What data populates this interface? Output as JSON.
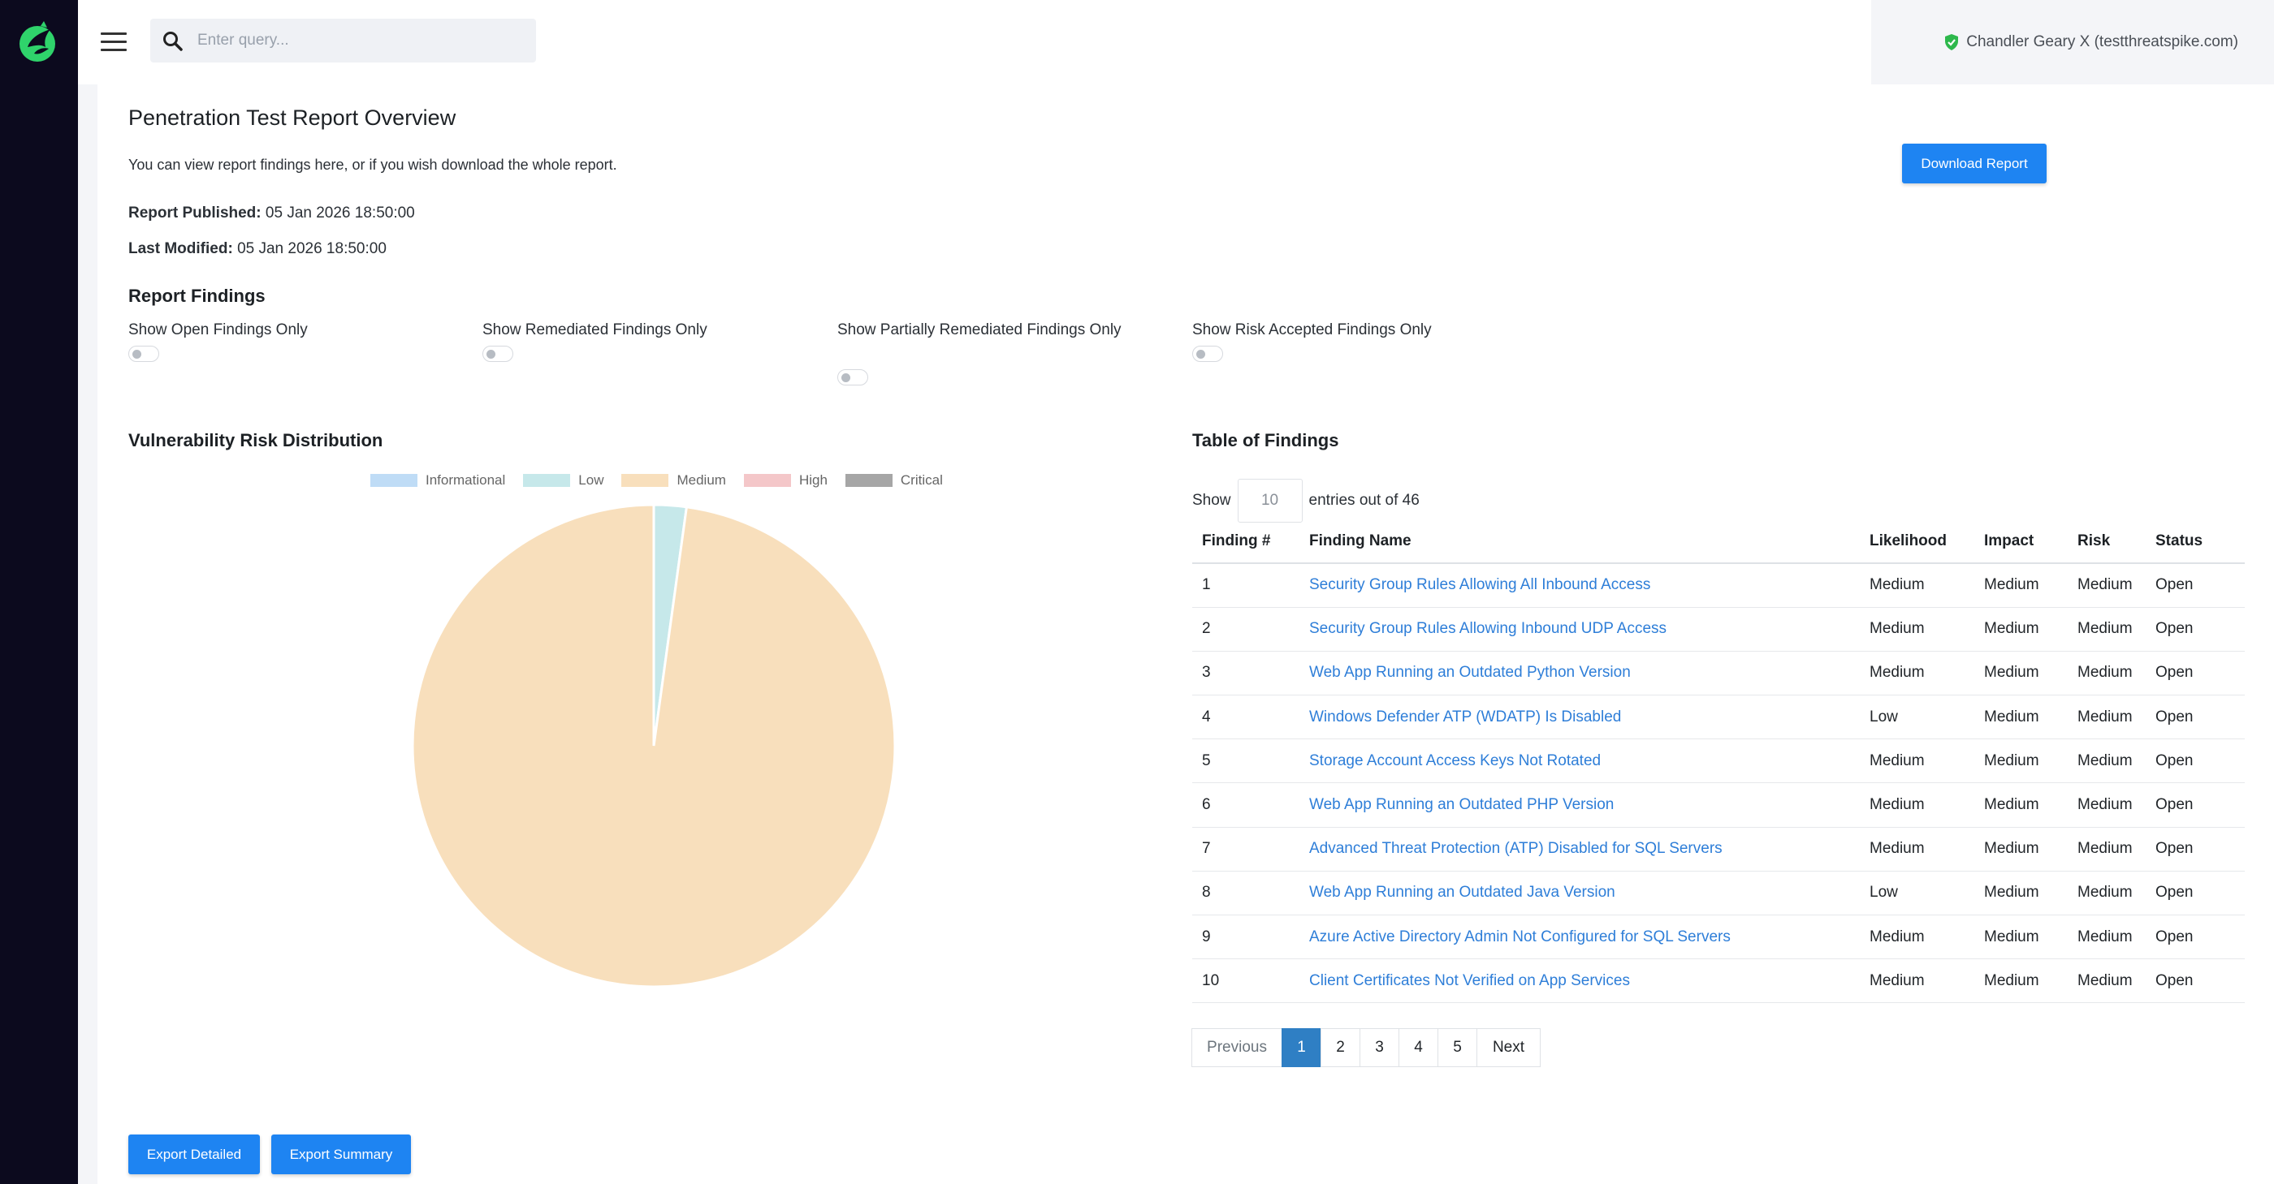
{
  "header": {
    "search_placeholder": "Enter query...",
    "user_label": "Chandler Geary X (testthreatspike.com)"
  },
  "report": {
    "title": "Penetration Test Report Overview",
    "description": "You can view report findings here, or if you wish download the whole report.",
    "published_label": "Report Published:",
    "published_value": "05 Jan 2026 18:50:00",
    "modified_label": "Last Modified:",
    "modified_value": "05 Jan 2026 18:50:00",
    "download_label": "Download Report"
  },
  "filters": {
    "heading": "Report Findings",
    "items": [
      {
        "label": "Show Open Findings Only",
        "on": false
      },
      {
        "label": "Show Remediated Findings Only",
        "on": false
      },
      {
        "label": "Show Partially Remediated Findings Only",
        "on": false
      },
      {
        "label": "Show Risk Accepted Findings Only",
        "on": false
      }
    ]
  },
  "chart_section": {
    "heading": "Vulnerability Risk Distribution"
  },
  "chart_data": {
    "type": "pie",
    "title": "",
    "categories": [
      "Informational",
      "Low",
      "Medium",
      "High",
      "Critical"
    ],
    "values": [
      0,
      1,
      45,
      0,
      0
    ],
    "colors": [
      "#bfdcf6",
      "#c6e8ea",
      "#f8dfbc",
      "#f4c7c9",
      "#a6a6a6"
    ],
    "legend": "top"
  },
  "table_section": {
    "heading": "Table of Findings",
    "show_label": "Show",
    "entries_value": "10",
    "entries_suffix": "entries out of 46",
    "columns": [
      "Finding #",
      "Finding Name",
      "Likelihood",
      "Impact",
      "Risk",
      "Status"
    ],
    "rows": [
      {
        "num": "1",
        "name": "Security Group Rules Allowing All Inbound Access",
        "likelihood": "Medium",
        "impact": "Medium",
        "risk": "Medium",
        "status": "Open"
      },
      {
        "num": "2",
        "name": "Security Group Rules Allowing Inbound UDP Access",
        "likelihood": "Medium",
        "impact": "Medium",
        "risk": "Medium",
        "status": "Open"
      },
      {
        "num": "3",
        "name": "Web App Running an Outdated Python Version",
        "likelihood": "Medium",
        "impact": "Medium",
        "risk": "Medium",
        "status": "Open"
      },
      {
        "num": "4",
        "name": "Windows Defender ATP (WDATP) Is Disabled",
        "likelihood": "Low",
        "impact": "Medium",
        "risk": "Medium",
        "status": "Open"
      },
      {
        "num": "5",
        "name": "Storage Account Access Keys Not Rotated",
        "likelihood": "Medium",
        "impact": "Medium",
        "risk": "Medium",
        "status": "Open"
      },
      {
        "num": "6",
        "name": "Web App Running an Outdated PHP Version",
        "likelihood": "Medium",
        "impact": "Medium",
        "risk": "Medium",
        "status": "Open"
      },
      {
        "num": "7",
        "name": "Advanced Threat Protection (ATP) Disabled for SQL Servers",
        "likelihood": "Medium",
        "impact": "Medium",
        "risk": "Medium",
        "status": "Open"
      },
      {
        "num": "8",
        "name": "Web App Running an Outdated Java Version",
        "likelihood": "Low",
        "impact": "Medium",
        "risk": "Medium",
        "status": "Open"
      },
      {
        "num": "9",
        "name": "Azure Active Directory Admin Not Configured for SQL Servers",
        "likelihood": "Medium",
        "impact": "Medium",
        "risk": "Medium",
        "status": "Open"
      },
      {
        "num": "10",
        "name": "Client Certificates Not Verified on App Services",
        "likelihood": "Medium",
        "impact": "Medium",
        "risk": "Medium",
        "status": "Open"
      }
    ],
    "pagination": {
      "previous": "Previous",
      "pages": [
        "1",
        "2",
        "3",
        "4",
        "5"
      ],
      "active": "1",
      "next": "Next"
    }
  },
  "export": {
    "detailed_label": "Export Detailed",
    "summary_label": "Export Summary"
  },
  "colors": {
    "accent": "#1e84f2",
    "link": "#2e7ed8",
    "sidebar": "#0c0a1e",
    "logo": "#2fd36b"
  }
}
